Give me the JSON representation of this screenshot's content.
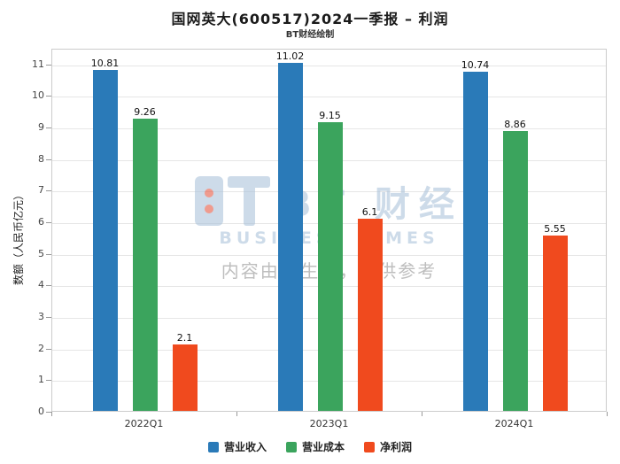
{
  "header": {
    "title": "国网英大(600517)2024一季报 – 利润",
    "subtitle": "BT财经绘制"
  },
  "watermark": {
    "brand": "BT 财经",
    "brand_sub": "BUSINESS TIMES",
    "notice": "内容由AI生成，仅供参考"
  },
  "chart_data": {
    "type": "bar",
    "categories": [
      "2022Q1",
      "2023Q1",
      "2024Q1"
    ],
    "series": [
      {
        "name": "营业收入",
        "color": "#2A7AB8",
        "values": [
          10.81,
          11.02,
          10.74
        ]
      },
      {
        "name": "营业成本",
        "color": "#3BA45D",
        "values": [
          9.26,
          9.15,
          8.86
        ]
      },
      {
        "name": "净利润",
        "color": "#F04A1E",
        "values": [
          2.1,
          6.1,
          5.55
        ]
      }
    ],
    "title": "国网英大(600517)2024一季报 – 利润",
    "xlabel": "",
    "ylabel": "数额（人民币亿元）",
    "ylim": [
      0,
      11.5
    ],
    "yticks": [
      0,
      1,
      2,
      3,
      4,
      5,
      6,
      7,
      8,
      9,
      10,
      11
    ],
    "grid": true,
    "legend_position": "bottom"
  }
}
